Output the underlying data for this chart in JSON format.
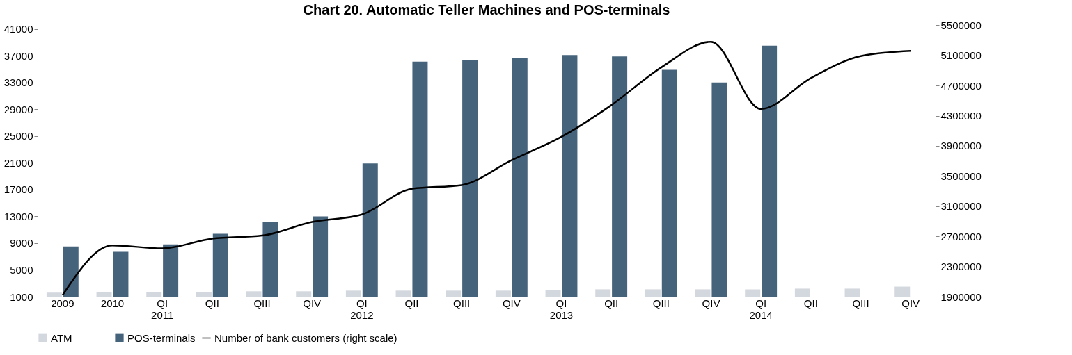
{
  "chart_data": {
    "type": "bar",
    "title": "Chart 20. Automatic Teller Machines and POS-terminals",
    "categories": [
      "2009",
      "2010",
      "QI\n2011",
      "QII",
      "QIII",
      "QIV",
      "QI\n2012",
      "QII",
      "QIII",
      "QIV",
      "QI\n2013",
      "QII",
      "QIII",
      "QIV",
      "QI\n2014",
      "QII",
      "QIII",
      "QIV"
    ],
    "series": [
      {
        "name": "ATM",
        "color": "#d3d7de",
        "values": [
          1600,
          1700,
          1700,
          1700,
          1800,
          1800,
          1900,
          1900,
          1900,
          1900,
          2000,
          2100,
          2100,
          2100,
          2100,
          2200,
          2200,
          2500
        ]
      },
      {
        "name": "POS-terminals",
        "color": "#46637c",
        "values": [
          8500,
          7700,
          8800,
          10400,
          12100,
          13000,
          20900,
          36100,
          36400,
          36700,
          37100,
          36900,
          34900,
          33000,
          38500,
          null,
          null,
          null
        ]
      },
      {
        "name": "Number of bank customers (right scale)",
        "type": "line",
        "axis": "y2",
        "color": "#000000",
        "values": [
          1920000,
          2580000,
          2540000,
          2670000,
          2710000,
          2890000,
          2990000,
          3330000,
          3380000,
          3710000,
          4020000,
          4440000,
          4940000,
          5280000,
          4390000,
          4800000,
          5090000,
          5160000
        ]
      }
    ],
    "ylim": [
      1000,
      42000
    ],
    "yticks": [
      1000,
      5000,
      9000,
      13000,
      17000,
      21000,
      25000,
      29000,
      33000,
      37000,
      41000
    ],
    "y2lim": [
      1900000,
      5540000
    ],
    "y2ticks": [
      1900000,
      2300000,
      2700000,
      3100000,
      3500000,
      3900000,
      4300000,
      4700000,
      5100000,
      5500000
    ],
    "grid": false,
    "legend": "bottom",
    "line_style": "solid",
    "marker": "none"
  }
}
